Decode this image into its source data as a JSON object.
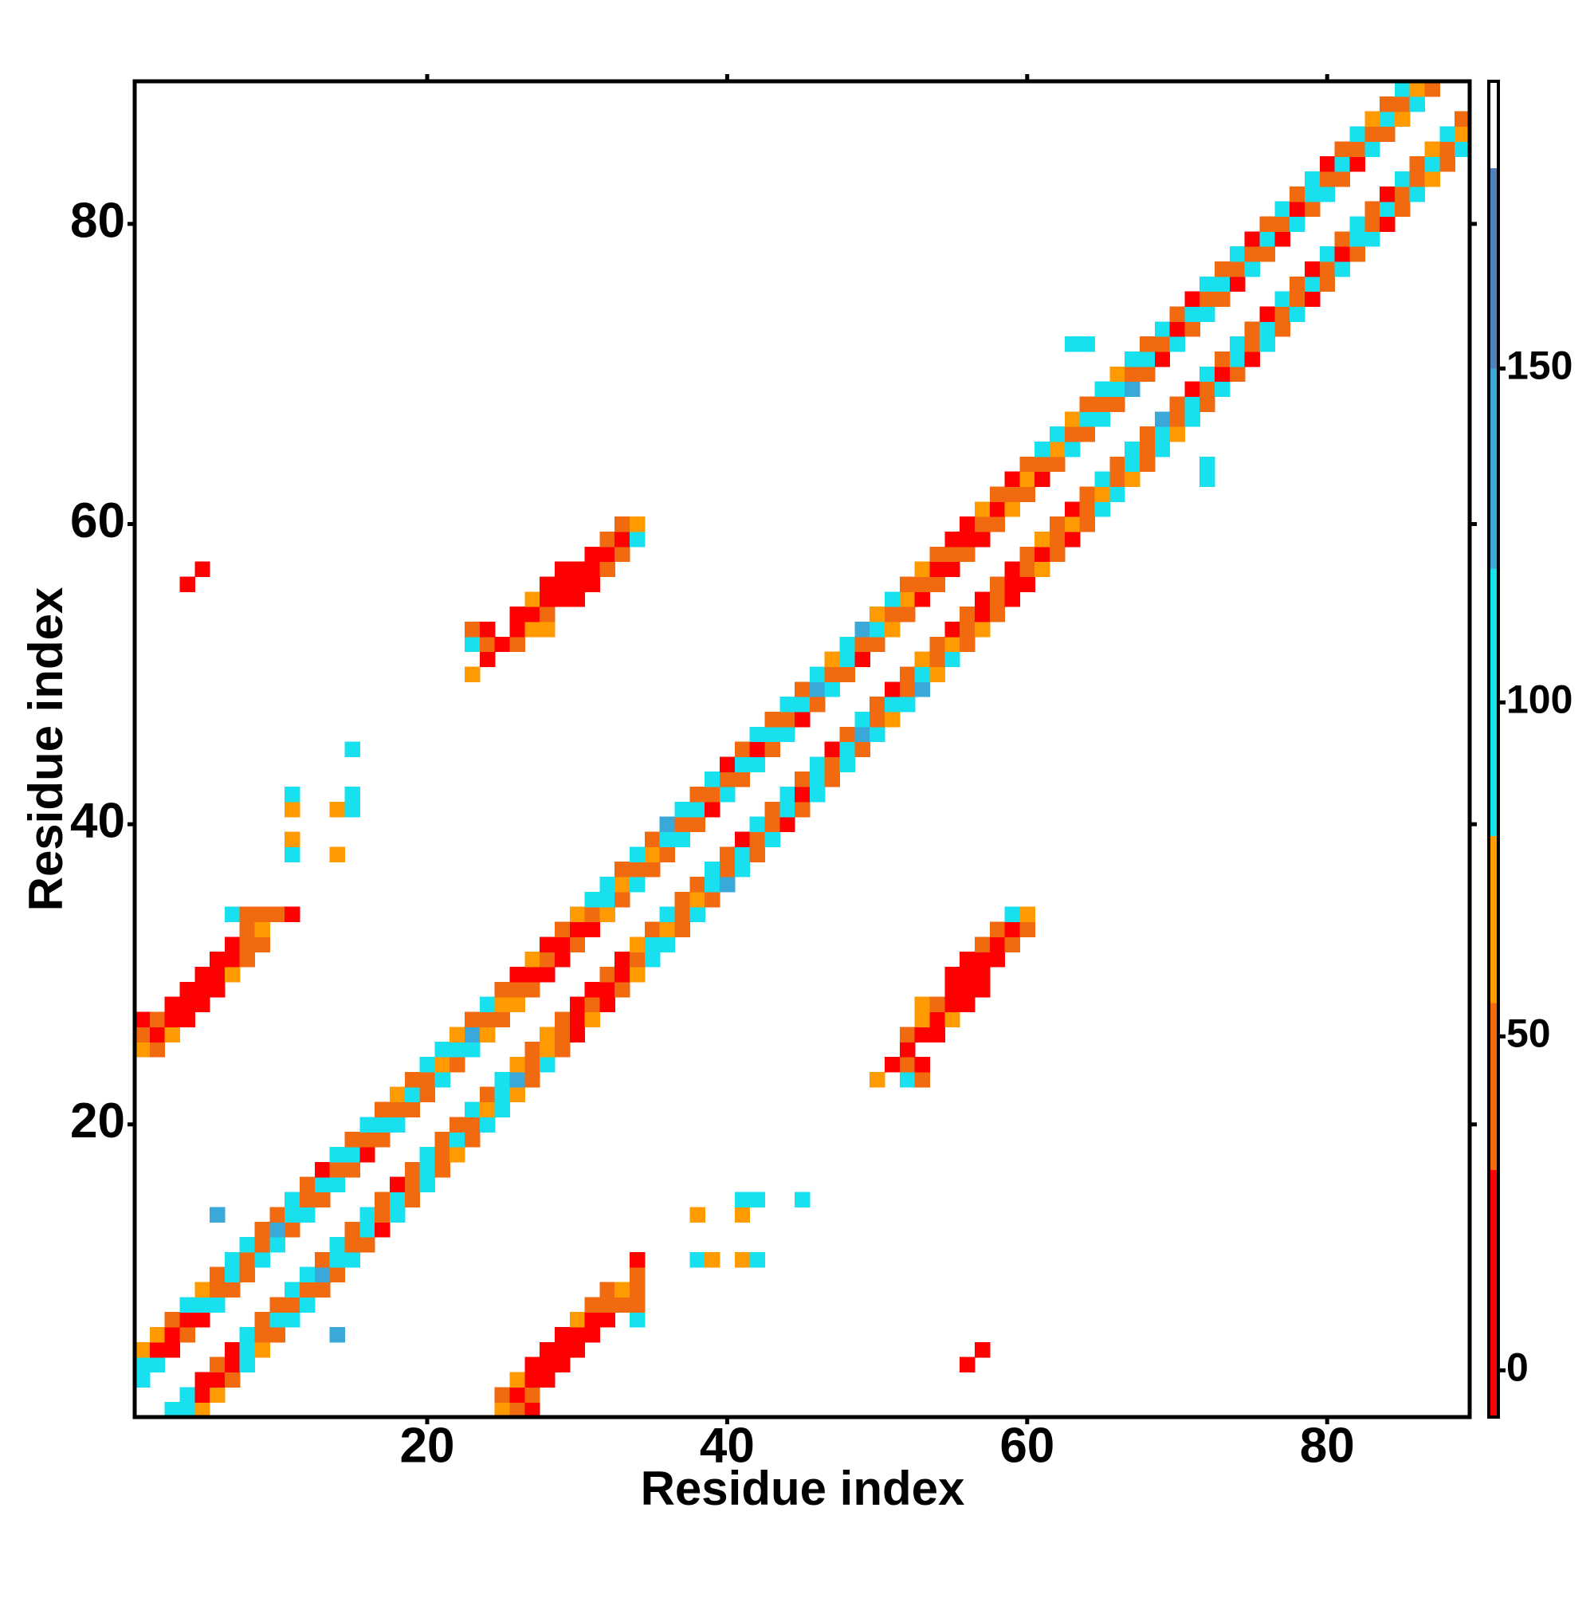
{
  "chart_data": {
    "type": "heatmap",
    "x_label": "Residue index",
    "y_label": "Residue index",
    "xlim": [
      0.5,
      89.5
    ],
    "ylim": [
      0.5,
      89.5
    ],
    "xticks": [
      20,
      40,
      60,
      80
    ],
    "yticks": [
      20,
      40,
      60,
      80
    ],
    "symmetric": true,
    "clim": [
      -7,
      193
    ],
    "cticks": [
      0,
      50,
      100,
      150
    ],
    "colorscale": [
      {
        "value": -7,
        "color": "#ff0000"
      },
      {
        "value": 30,
        "color": "#f26a10"
      },
      {
        "value": 55,
        "color": "#ff9a00"
      },
      {
        "value": 80,
        "color": "#18e0ee"
      },
      {
        "value": 120,
        "color": "#3aa8d8"
      },
      {
        "value": 150,
        "color": "#4f80c0"
      },
      {
        "value": 180,
        "color": "#ffffff"
      }
    ],
    "cells": [
      [
        1,
        3,
        100
      ],
      [
        1,
        4,
        100
      ],
      [
        1,
        5,
        65
      ],
      [
        2,
        4,
        100
      ],
      [
        2,
        5,
        10
      ],
      [
        2,
        6,
        65
      ],
      [
        3,
        5,
        10
      ],
      [
        3,
        6,
        10
      ],
      [
        3,
        7,
        45
      ],
      [
        4,
        6,
        45
      ],
      [
        4,
        7,
        10
      ],
      [
        4,
        8,
        100
      ],
      [
        5,
        7,
        10
      ],
      [
        5,
        8,
        100
      ],
      [
        5,
        9,
        65
      ],
      [
        6,
        8,
        100
      ],
      [
        6,
        9,
        45
      ],
      [
        6,
        10,
        45
      ],
      [
        7,
        9,
        45
      ],
      [
        7,
        10,
        100
      ],
      [
        7,
        11,
        100
      ],
      [
        8,
        10,
        45
      ],
      [
        8,
        11,
        45
      ],
      [
        8,
        12,
        100
      ],
      [
        9,
        11,
        100
      ],
      [
        9,
        12,
        45
      ],
      [
        9,
        13,
        45
      ],
      [
        10,
        12,
        100
      ],
      [
        10,
        13,
        130
      ],
      [
        10,
        14,
        45
      ],
      [
        11,
        13,
        45
      ],
      [
        11,
        14,
        100
      ],
      [
        11,
        15,
        100
      ],
      [
        12,
        14,
        100
      ],
      [
        12,
        15,
        45
      ],
      [
        12,
        16,
        45
      ],
      [
        13,
        15,
        45
      ],
      [
        13,
        16,
        100
      ],
      [
        13,
        17,
        10
      ],
      [
        14,
        16,
        100
      ],
      [
        14,
        17,
        45
      ],
      [
        14,
        18,
        100
      ],
      [
        15,
        17,
        45
      ],
      [
        15,
        18,
        100
      ],
      [
        15,
        19,
        45
      ],
      [
        16,
        18,
        10
      ],
      [
        16,
        19,
        45
      ],
      [
        16,
        20,
        100
      ],
      [
        17,
        19,
        45
      ],
      [
        17,
        20,
        100
      ],
      [
        17,
        21,
        45
      ],
      [
        18,
        20,
        100
      ],
      [
        18,
        21,
        45
      ],
      [
        18,
        22,
        65
      ],
      [
        19,
        21,
        45
      ],
      [
        19,
        22,
        100
      ],
      [
        19,
        23,
        45
      ],
      [
        20,
        22,
        45
      ],
      [
        20,
        23,
        45
      ],
      [
        20,
        24,
        100
      ],
      [
        21,
        23,
        100
      ],
      [
        21,
        24,
        65
      ],
      [
        21,
        25,
        100
      ],
      [
        22,
        24,
        45
      ],
      [
        22,
        25,
        100
      ],
      [
        22,
        26,
        65
      ],
      [
        23,
        25,
        100
      ],
      [
        23,
        26,
        130
      ],
      [
        23,
        27,
        45
      ],
      [
        24,
        26,
        65
      ],
      [
        24,
        27,
        45
      ],
      [
        24,
        28,
        100
      ],
      [
        25,
        27,
        45
      ],
      [
        25,
        28,
        65
      ],
      [
        25,
        29,
        45
      ],
      [
        26,
        28,
        65
      ],
      [
        26,
        29,
        45
      ],
      [
        26,
        30,
        10
      ],
      [
        27,
        29,
        45
      ],
      [
        27,
        30,
        10
      ],
      [
        27,
        31,
        65
      ],
      [
        28,
        30,
        10
      ],
      [
        28,
        31,
        45
      ],
      [
        28,
        32,
        10
      ],
      [
        29,
        31,
        10
      ],
      [
        29,
        32,
        10
      ],
      [
        29,
        33,
        45
      ],
      [
        30,
        32,
        45
      ],
      [
        30,
        33,
        10
      ],
      [
        30,
        34,
        65
      ],
      [
        31,
        33,
        10
      ],
      [
        31,
        34,
        45
      ],
      [
        31,
        35,
        100
      ],
      [
        32,
        34,
        65
      ],
      [
        32,
        35,
        100
      ],
      [
        32,
        36,
        100
      ],
      [
        33,
        35,
        45
      ],
      [
        33,
        36,
        65
      ],
      [
        33,
        37,
        45
      ],
      [
        34,
        36,
        100
      ],
      [
        34,
        37,
        45
      ],
      [
        34,
        38,
        100
      ],
      [
        35,
        37,
        45
      ],
      [
        35,
        38,
        65
      ],
      [
        35,
        39,
        45
      ],
      [
        36,
        38,
        45
      ],
      [
        36,
        39,
        100
      ],
      [
        36,
        40,
        130
      ],
      [
        37,
        39,
        100
      ],
      [
        37,
        40,
        45
      ],
      [
        37,
        41,
        100
      ],
      [
        38,
        40,
        45
      ],
      [
        38,
        41,
        100
      ],
      [
        38,
        42,
        45
      ],
      [
        39,
        41,
        10
      ],
      [
        39,
        42,
        45
      ],
      [
        39,
        43,
        100
      ],
      [
        40,
        42,
        100
      ],
      [
        40,
        43,
        45
      ],
      [
        40,
        44,
        10
      ],
      [
        41,
        43,
        45
      ],
      [
        41,
        44,
        100
      ],
      [
        41,
        45,
        45
      ],
      [
        42,
        44,
        100
      ],
      [
        42,
        45,
        10
      ],
      [
        42,
        46,
        100
      ],
      [
        43,
        45,
        45
      ],
      [
        43,
        46,
        100
      ],
      [
        43,
        47,
        45
      ],
      [
        44,
        46,
        100
      ],
      [
        44,
        47,
        45
      ],
      [
        44,
        48,
        100
      ],
      [
        45,
        47,
        10
      ],
      [
        45,
        48,
        100
      ],
      [
        45,
        49,
        45
      ],
      [
        46,
        48,
        45
      ],
      [
        46,
        49,
        130
      ],
      [
        46,
        50,
        100
      ],
      [
        47,
        49,
        100
      ],
      [
        47,
        50,
        45
      ],
      [
        47,
        51,
        65
      ],
      [
        48,
        50,
        45
      ],
      [
        48,
        51,
        100
      ],
      [
        48,
        52,
        100
      ],
      [
        49,
        51,
        10
      ],
      [
        49,
        52,
        45
      ],
      [
        49,
        53,
        130
      ],
      [
        50,
        52,
        45
      ],
      [
        50,
        53,
        100
      ],
      [
        50,
        54,
        65
      ],
      [
        51,
        53,
        65
      ],
      [
        51,
        54,
        45
      ],
      [
        51,
        55,
        100
      ],
      [
        52,
        54,
        45
      ],
      [
        52,
        55,
        65
      ],
      [
        52,
        56,
        45
      ],
      [
        53,
        55,
        10
      ],
      [
        53,
        56,
        45
      ],
      [
        53,
        57,
        65
      ],
      [
        54,
        56,
        45
      ],
      [
        54,
        57,
        10
      ],
      [
        54,
        58,
        45
      ],
      [
        55,
        57,
        10
      ],
      [
        55,
        58,
        45
      ],
      [
        55,
        59,
        10
      ],
      [
        56,
        58,
        45
      ],
      [
        56,
        59,
        10
      ],
      [
        56,
        60,
        10
      ],
      [
        57,
        59,
        10
      ],
      [
        57,
        60,
        45
      ],
      [
        57,
        61,
        65
      ],
      [
        58,
        60,
        45
      ],
      [
        58,
        61,
        10
      ],
      [
        58,
        62,
        45
      ],
      [
        59,
        61,
        65
      ],
      [
        59,
        62,
        45
      ],
      [
        59,
        63,
        10
      ],
      [
        60,
        62,
        45
      ],
      [
        60,
        63,
        65
      ],
      [
        60,
        64,
        45
      ],
      [
        61,
        63,
        10
      ],
      [
        61,
        64,
        45
      ],
      [
        61,
        65,
        100
      ],
      [
        62,
        64,
        45
      ],
      [
        62,
        65,
        65
      ],
      [
        62,
        66,
        100
      ],
      [
        63,
        65,
        100
      ],
      [
        63,
        66,
        45
      ],
      [
        63,
        67,
        65
      ],
      [
        64,
        66,
        45
      ],
      [
        64,
        67,
        100
      ],
      [
        64,
        68,
        45
      ],
      [
        65,
        67,
        100
      ],
      [
        65,
        68,
        45
      ],
      [
        65,
        69,
        100
      ],
      [
        66,
        68,
        45
      ],
      [
        66,
        69,
        100
      ],
      [
        66,
        70,
        65
      ],
      [
        67,
        69,
        130
      ],
      [
        67,
        70,
        45
      ],
      [
        67,
        71,
        100
      ],
      [
        68,
        70,
        45
      ],
      [
        68,
        71,
        100
      ],
      [
        68,
        72,
        45
      ],
      [
        69,
        71,
        10
      ],
      [
        69,
        72,
        45
      ],
      [
        69,
        73,
        100
      ],
      [
        70,
        72,
        100
      ],
      [
        70,
        73,
        10
      ],
      [
        70,
        74,
        45
      ],
      [
        71,
        73,
        45
      ],
      [
        71,
        74,
        100
      ],
      [
        71,
        75,
        10
      ],
      [
        72,
        74,
        100
      ],
      [
        72,
        75,
        45
      ],
      [
        72,
        76,
        100
      ],
      [
        73,
        75,
        45
      ],
      [
        73,
        76,
        100
      ],
      [
        73,
        77,
        45
      ],
      [
        74,
        76,
        10
      ],
      [
        74,
        77,
        45
      ],
      [
        74,
        78,
        100
      ],
      [
        75,
        77,
        100
      ],
      [
        75,
        78,
        45
      ],
      [
        75,
        79,
        10
      ],
      [
        76,
        78,
        45
      ],
      [
        76,
        79,
        100
      ],
      [
        76,
        80,
        45
      ],
      [
        77,
        79,
        10
      ],
      [
        77,
        80,
        45
      ],
      [
        77,
        81,
        100
      ],
      [
        78,
        80,
        100
      ],
      [
        78,
        81,
        10
      ],
      [
        78,
        82,
        45
      ],
      [
        79,
        81,
        45
      ],
      [
        79,
        82,
        100
      ],
      [
        79,
        83,
        100
      ],
      [
        80,
        82,
        100
      ],
      [
        80,
        83,
        45
      ],
      [
        80,
        84,
        10
      ],
      [
        81,
        83,
        45
      ],
      [
        81,
        84,
        100
      ],
      [
        81,
        85,
        45
      ],
      [
        82,
        84,
        10
      ],
      [
        82,
        85,
        45
      ],
      [
        82,
        86,
        100
      ],
      [
        83,
        85,
        100
      ],
      [
        83,
        86,
        45
      ],
      [
        83,
        87,
        65
      ],
      [
        84,
        86,
        45
      ],
      [
        84,
        87,
        100
      ],
      [
        84,
        88,
        45
      ],
      [
        85,
        87,
        65
      ],
      [
        85,
        88,
        45
      ],
      [
        85,
        89,
        100
      ],
      [
        86,
        88,
        100
      ],
      [
        86,
        89,
        65
      ],
      [
        87,
        89,
        45
      ],
      [
        1,
        25,
        65
      ],
      [
        2,
        25,
        45
      ],
      [
        1,
        26,
        45
      ],
      [
        2,
        26,
        10
      ],
      [
        3,
        26,
        65
      ],
      [
        1,
        27,
        10
      ],
      [
        2,
        27,
        45
      ],
      [
        3,
        27,
        10
      ],
      [
        4,
        27,
        10
      ],
      [
        3,
        28,
        10
      ],
      [
        4,
        28,
        10
      ],
      [
        5,
        28,
        10
      ],
      [
        4,
        29,
        10
      ],
      [
        5,
        29,
        10
      ],
      [
        6,
        29,
        10
      ],
      [
        5,
        30,
        10
      ],
      [
        6,
        30,
        10
      ],
      [
        7,
        30,
        65
      ],
      [
        6,
        31,
        10
      ],
      [
        7,
        31,
        10
      ],
      [
        8,
        31,
        45
      ],
      [
        7,
        32,
        10
      ],
      [
        8,
        32,
        45
      ],
      [
        9,
        32,
        45
      ],
      [
        8,
        33,
        45
      ],
      [
        9,
        33,
        65
      ],
      [
        7,
        34,
        100
      ],
      [
        8,
        34,
        45
      ],
      [
        9,
        34,
        45
      ],
      [
        10,
        34,
        45
      ],
      [
        11,
        34,
        10
      ],
      [
        23,
        50,
        65
      ],
      [
        24,
        51,
        10
      ],
      [
        23,
        52,
        100
      ],
      [
        24,
        52,
        45
      ],
      [
        25,
        52,
        10
      ],
      [
        26,
        52,
        45
      ],
      [
        23,
        53,
        45
      ],
      [
        24,
        53,
        10
      ],
      [
        26,
        53,
        10
      ],
      [
        27,
        53,
        65
      ],
      [
        28,
        53,
        65
      ],
      [
        26,
        54,
        10
      ],
      [
        27,
        54,
        10
      ],
      [
        28,
        54,
        45
      ],
      [
        27,
        55,
        65
      ],
      [
        28,
        55,
        10
      ],
      [
        29,
        55,
        10
      ],
      [
        30,
        55,
        10
      ],
      [
        28,
        56,
        10
      ],
      [
        29,
        56,
        10
      ],
      [
        30,
        56,
        10
      ],
      [
        31,
        56,
        10
      ],
      [
        29,
        57,
        10
      ],
      [
        30,
        57,
        10
      ],
      [
        31,
        57,
        10
      ],
      [
        32,
        57,
        45
      ],
      [
        31,
        58,
        10
      ],
      [
        32,
        58,
        10
      ],
      [
        33,
        58,
        45
      ],
      [
        32,
        59,
        45
      ],
      [
        33,
        59,
        10
      ],
      [
        34,
        59,
        100
      ],
      [
        33,
        60,
        45
      ],
      [
        34,
        60,
        65
      ],
      [
        4,
        56,
        10
      ],
      [
        5,
        57,
        10
      ],
      [
        11,
        38,
        100
      ],
      [
        11,
        39,
        65
      ],
      [
        11,
        41,
        65
      ],
      [
        11,
        42,
        100
      ],
      [
        14,
        38,
        65
      ],
      [
        14,
        41,
        65
      ],
      [
        15,
        41,
        100
      ],
      [
        15,
        42,
        100
      ],
      [
        15,
        45,
        100
      ],
      [
        6,
        14,
        130
      ],
      [
        63,
        72,
        100
      ],
      [
        64,
        72,
        100
      ]
    ]
  }
}
